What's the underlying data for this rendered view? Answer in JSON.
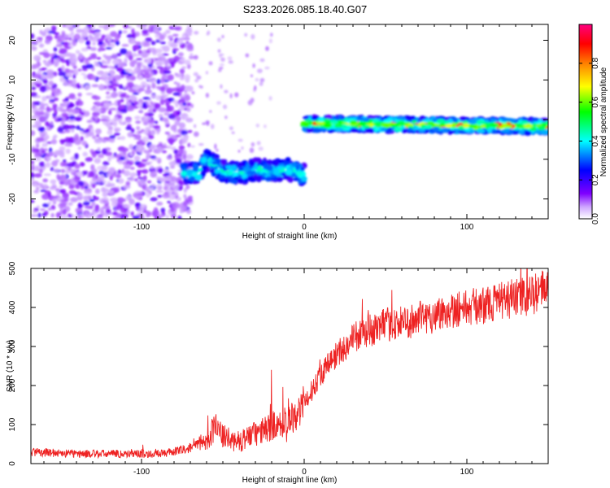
{
  "figure_title": "S233.2026.085.18.40.G07",
  "chart_data": [
    {
      "type": "heatmap",
      "title": "",
      "xlabel": "Height of straight line (km)",
      "ylabel": "Frequency (Hz)",
      "xlim": [
        -168,
        150
      ],
      "ylim": [
        -25,
        24
      ],
      "x_ticks": [
        -100,
        0,
        100
      ],
      "y_ticks": [
        -20,
        -10,
        0,
        10,
        20
      ],
      "grid": false,
      "colorbar": {
        "label": "Normalized spectral amplitude",
        "range": [
          0,
          1
        ],
        "ticks": [
          0.0,
          0.2,
          0.4,
          0.6,
          0.8
        ],
        "colors": [
          "#ffffff",
          "#7f00ff",
          "#0000ff",
          "#00ffff",
          "#00ff00",
          "#ffff00",
          "#ff7f00",
          "#ff0000",
          "#ff007f"
        ]
      },
      "regions": [
        {
          "x_range": [
            -168,
            -70
          ],
          "y_range": [
            -25,
            24
          ],
          "amplitude": 0.1,
          "note": "scattered weak noise"
        },
        {
          "x_range": [
            -75,
            0
          ],
          "y_range": [
            -16,
            -10
          ],
          "amplitude": 0.3
        },
        {
          "x_range": [
            0,
            150
          ],
          "y_center": -1.5,
          "amplitude": 0.6
        }
      ],
      "track_lower": {
        "x": [
          -75,
          -65,
          -60,
          -50,
          -40,
          -30,
          -20,
          -10,
          0
        ],
        "y": [
          -13.5,
          -13.5,
          -10,
          -13,
          -13.5,
          -12.5,
          -13,
          -12.5,
          -14
        ]
      },
      "track_upper": {
        "x": [
          0,
          50,
          100,
          150
        ],
        "y": [
          -1,
          -1.2,
          -1.5,
          -1.7
        ]
      }
    },
    {
      "type": "line",
      "title": "",
      "xlabel": "Height of straight line (km)",
      "ylabel": "SNR (10 * v/v)",
      "xlim": [
        -168,
        150
      ],
      "ylim": [
        0,
        500
      ],
      "x_ticks": [
        -100,
        0,
        100
      ],
      "y_ticks": [
        0,
        100,
        200,
        300,
        400,
        500
      ],
      "grid": false,
      "color": "#ee2222",
      "x": [
        -168,
        -140,
        -110,
        -90,
        -80,
        -70,
        -60,
        -55,
        -50,
        -45,
        -40,
        -35,
        -30,
        -20,
        -10,
        0,
        10,
        20,
        30,
        40,
        50,
        60,
        70,
        80,
        90,
        100,
        110,
        120,
        130,
        140,
        150
      ],
      "y": [
        30,
        25,
        25,
        25,
        30,
        40,
        60,
        95,
        70,
        60,
        55,
        70,
        75,
        95,
        110,
        150,
        230,
        280,
        320,
        340,
        355,
        360,
        370,
        380,
        395,
        400,
        405,
        415,
        425,
        430,
        455
      ]
    }
  ]
}
